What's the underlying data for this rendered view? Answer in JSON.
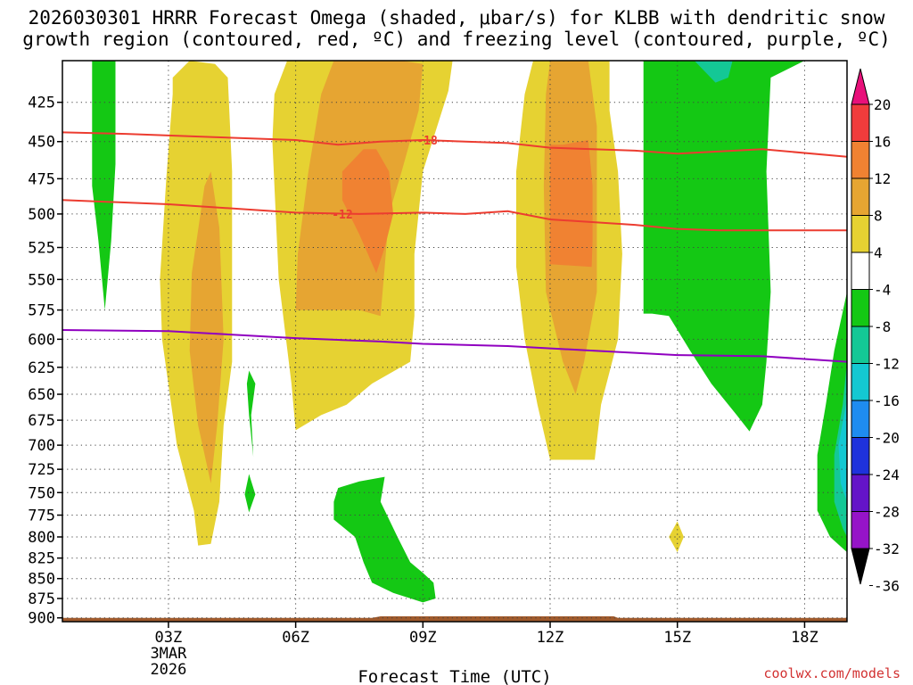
{
  "title_line1": "2026030301 HRRR Forecast Omega (shaded, μbar/s) for KLBB with dendritic snow",
  "title_line2": "growth region (contoured, red, ºC) and freezing level (contoured, purple, ºC)",
  "credit": "coolwx.com/models",
  "colors": {
    "red_contour": "#ec3c30",
    "purple_contour": "#9000c0",
    "ground": "#a05a2c"
  },
  "chart_data": {
    "type": "heatmap",
    "title": "2026030301 HRRR Forecast Omega (shaded, μbar/s) for KLBB with dendritic snow growth region (contoured, red, ºC) and freezing level (contoured, purple, ºC)",
    "xlabel": "Forecast Time (UTC)",
    "ylabel": "",
    "x_range_hours": [
      0.5,
      19
    ],
    "y_range_mb": [
      400,
      905
    ],
    "y_scale": "log-pressure",
    "grid": true,
    "x_ticks": [
      {
        "hour": 3,
        "label": "03Z",
        "sub1": "3MAR",
        "sub2": "2026"
      },
      {
        "hour": 6,
        "label": "06Z"
      },
      {
        "hour": 9,
        "label": "09Z"
      },
      {
        "hour": 12,
        "label": "12Z"
      },
      {
        "hour": 15,
        "label": "15Z"
      },
      {
        "hour": 18,
        "label": "18Z"
      }
    ],
    "y_ticks": [
      425,
      450,
      475,
      500,
      525,
      550,
      575,
      600,
      625,
      650,
      675,
      700,
      725,
      750,
      775,
      800,
      825,
      850,
      875,
      900
    ],
    "colorbar": {
      "ticks": [
        "20",
        "16",
        "12",
        "8",
        "4",
        "-4",
        "-8",
        "-12",
        "-16",
        "-20",
        "-24",
        "-28",
        "-32",
        "-36"
      ],
      "levels": [
        {
          "range": ">20",
          "color": "#e8107a"
        },
        {
          "range": "16 to 20",
          "color": "#f03c3c"
        },
        {
          "range": "12 to 16",
          "color": "#f08232"
        },
        {
          "range": "8 to 12",
          "color": "#e6a532"
        },
        {
          "range": "4 to 8",
          "color": "#e6d232"
        },
        {
          "range": "-4 to 4",
          "color": "#ffffff"
        },
        {
          "range": "-8 to -4",
          "color": "#14c814"
        },
        {
          "range": "-12 to -8",
          "color": "#14c896"
        },
        {
          "range": "-16 to -12",
          "color": "#14c8d2"
        },
        {
          "range": "-20 to -16",
          "color": "#1e8cf0"
        },
        {
          "range": "-24 to -20",
          "color": "#1e32dc"
        },
        {
          "range": "-28 to -24",
          "color": "#6414c8"
        },
        {
          "range": "-32 to -28",
          "color": "#9614c8"
        },
        {
          "range": "-36 to -32",
          "color": "#aaaaaa"
        },
        {
          "range": "<-36",
          "color": "#000000"
        }
      ]
    },
    "contour_lines": [
      {
        "name": "-18C isotherm",
        "label": "-18",
        "label_at": [
          9.1,
          449
        ],
        "color": "#ec3c30",
        "points": [
          [
            0.5,
            444
          ],
          [
            2,
            445
          ],
          [
            4,
            447
          ],
          [
            6,
            449
          ],
          [
            7,
            452
          ],
          [
            8,
            450
          ],
          [
            9,
            449
          ],
          [
            10,
            450
          ],
          [
            11,
            451
          ],
          [
            12,
            454
          ],
          [
            14,
            456
          ],
          [
            15,
            458
          ],
          [
            17,
            455
          ],
          [
            19,
            460
          ]
        ]
      },
      {
        "name": "-12C isotherm",
        "label": "-12",
        "label_at": [
          7.1,
          500
        ],
        "color": "#ec3c30",
        "points": [
          [
            0.5,
            490
          ],
          [
            3,
            493
          ],
          [
            5,
            497
          ],
          [
            6,
            499
          ],
          [
            7.5,
            500
          ],
          [
            9,
            499
          ],
          [
            10,
            500
          ],
          [
            11,
            498
          ],
          [
            12,
            504
          ],
          [
            14,
            508
          ],
          [
            15,
            511
          ],
          [
            16,
            512
          ],
          [
            19,
            512
          ]
        ]
      },
      {
        "name": "0C freezing level",
        "label": "",
        "color": "#9000c0",
        "points": [
          [
            0.5,
            592
          ],
          [
            3,
            593
          ],
          [
            4,
            595
          ],
          [
            6,
            599
          ],
          [
            8,
            602
          ],
          [
            9,
            604
          ],
          [
            11,
            606
          ],
          [
            13,
            610
          ],
          [
            15,
            614
          ],
          [
            17,
            615
          ],
          [
            19,
            620
          ]
        ]
      }
    ],
    "shaded_regions": [
      {
        "level": "4 to 8",
        "color": "#e6d232",
        "points": [
          [
            3.1,
            410
          ],
          [
            3.5,
            400
          ],
          [
            4.1,
            402
          ],
          [
            4.4,
            410
          ],
          [
            4.5,
            470
          ],
          [
            4.5,
            620
          ],
          [
            4.3,
            680
          ],
          [
            4.2,
            760
          ],
          [
            4.0,
            808
          ],
          [
            3.7,
            810
          ],
          [
            3.6,
            770
          ],
          [
            3.2,
            700
          ],
          [
            2.85,
            600
          ],
          [
            2.8,
            550
          ],
          [
            2.95,
            475
          ],
          [
            3.1,
            420
          ]
        ]
      },
      {
        "level": "8 to 12",
        "color": "#e6a532",
        "points": [
          [
            3.85,
            480
          ],
          [
            4.0,
            470
          ],
          [
            4.2,
            510
          ],
          [
            4.3,
            600
          ],
          [
            4.15,
            680
          ],
          [
            4.0,
            740
          ],
          [
            3.7,
            680
          ],
          [
            3.5,
            610
          ],
          [
            3.55,
            545
          ]
        ]
      },
      {
        "level": "4 to 8",
        "color": "#e6d232",
        "points": [
          [
            5.5,
            420
          ],
          [
            5.8,
            400
          ],
          [
            6.5,
            400
          ],
          [
            7.8,
            400
          ],
          [
            9.2,
            400
          ],
          [
            9.7,
            400
          ],
          [
            9.6,
            418
          ],
          [
            9.0,
            470
          ],
          [
            8.8,
            530
          ],
          [
            8.8,
            580
          ],
          [
            8.7,
            620
          ],
          [
            7.8,
            640
          ],
          [
            7.2,
            660
          ],
          [
            6.6,
            670
          ],
          [
            6.0,
            685
          ],
          [
            5.9,
            640
          ],
          [
            5.6,
            550
          ],
          [
            5.45,
            450
          ]
        ]
      },
      {
        "level": "8 to 12",
        "color": "#e6a532",
        "points": [
          [
            6.6,
            420
          ],
          [
            6.9,
            400
          ],
          [
            7.5,
            400
          ],
          [
            8.5,
            400
          ],
          [
            9.0,
            402
          ],
          [
            8.9,
            430
          ],
          [
            8.5,
            470
          ],
          [
            8.2,
            500
          ],
          [
            8.1,
            540
          ],
          [
            8.0,
            580
          ],
          [
            7.5,
            575
          ],
          [
            6.6,
            575
          ],
          [
            6.0,
            575
          ],
          [
            6.05,
            530
          ],
          [
            6.3,
            470
          ]
        ]
      },
      {
        "level": "12 to 16",
        "color": "#f08232",
        "points": [
          [
            7.1,
            470
          ],
          [
            7.6,
            455
          ],
          [
            7.9,
            455
          ],
          [
            8.2,
            470
          ],
          [
            8.3,
            500
          ],
          [
            8.1,
            525
          ],
          [
            7.9,
            545
          ],
          [
            7.5,
            515
          ],
          [
            7.1,
            490
          ]
        ]
      },
      {
        "level": "4 to 8",
        "color": "#e6d232",
        "points": [
          [
            11.4,
            420
          ],
          [
            11.6,
            400
          ],
          [
            13.4,
            400
          ],
          [
            13.4,
            430
          ],
          [
            13.6,
            470
          ],
          [
            13.7,
            530
          ],
          [
            13.6,
            600
          ],
          [
            13.2,
            660
          ],
          [
            13.05,
            715
          ],
          [
            12.0,
            715
          ],
          [
            11.7,
            660
          ],
          [
            11.4,
            600
          ],
          [
            11.2,
            540
          ],
          [
            11.2,
            470
          ]
        ]
      },
      {
        "level": "8 to 12",
        "color": "#e6a532",
        "points": [
          [
            11.9,
            420
          ],
          [
            12.0,
            400
          ],
          [
            12.9,
            400
          ],
          [
            13.1,
            440
          ],
          [
            13.1,
            500
          ],
          [
            13.1,
            560
          ],
          [
            12.8,
            620
          ],
          [
            12.6,
            650
          ],
          [
            12.3,
            620
          ],
          [
            11.9,
            560
          ],
          [
            11.85,
            480
          ]
        ]
      },
      {
        "level": "12 to 16",
        "color": "#f08232",
        "points": [
          [
            12.0,
            452
          ],
          [
            12.3,
            452
          ],
          [
            12.9,
            449
          ],
          [
            13.0,
            480
          ],
          [
            13.0,
            520
          ],
          [
            12.98,
            540
          ],
          [
            12.0,
            538
          ],
          [
            12.0,
            500
          ]
        ]
      },
      {
        "level": "4 to 8",
        "color": "#e6d232",
        "points": [
          [
            15.0,
            782
          ],
          [
            15.15,
            800
          ],
          [
            15.0,
            818
          ],
          [
            14.8,
            800
          ]
        ]
      },
      {
        "level": "-8 to -4",
        "color": "#14c814",
        "points": [
          [
            1.2,
            400
          ],
          [
            1.75,
            400
          ],
          [
            1.75,
            465
          ],
          [
            1.65,
            520
          ],
          [
            1.5,
            575
          ],
          [
            1.35,
            520
          ],
          [
            1.2,
            480
          ]
        ]
      },
      {
        "level": "-8 to -4",
        "color": "#14c814",
        "points": [
          [
            4.9,
            628
          ],
          [
            5.05,
            640
          ],
          [
            4.95,
            670
          ],
          [
            5.0,
            712
          ],
          [
            4.9,
            670
          ],
          [
            4.85,
            640
          ]
        ]
      },
      {
        "level": "-8 to -4",
        "color": "#14c814",
        "points": [
          [
            4.9,
            730
          ],
          [
            5.05,
            752
          ],
          [
            4.9,
            772
          ],
          [
            4.8,
            752
          ]
        ]
      },
      {
        "level": "-8 to -4",
        "color": "#14c814",
        "points": [
          [
            7.0,
            745
          ],
          [
            7.5,
            738
          ],
          [
            8.1,
            733
          ],
          [
            8.0,
            760
          ],
          [
            8.4,
            800
          ],
          [
            8.7,
            830
          ],
          [
            9.0,
            843
          ],
          [
            9.25,
            855
          ],
          [
            9.3,
            875
          ],
          [
            9.0,
            880
          ],
          [
            8.3,
            868
          ],
          [
            7.8,
            855
          ],
          [
            7.6,
            830
          ],
          [
            7.4,
            800
          ],
          [
            6.9,
            780
          ],
          [
            6.9,
            760
          ]
        ]
      },
      {
        "level": "-8 to -4",
        "color": "#14c814",
        "points": [
          [
            14.2,
            400
          ],
          [
            18.0,
            400
          ],
          [
            17.2,
            410
          ],
          [
            17.1,
            470
          ],
          [
            17.2,
            560
          ],
          [
            17.1,
            620
          ],
          [
            17.0,
            660
          ],
          [
            16.7,
            686
          ],
          [
            16.4,
            670
          ],
          [
            15.8,
            640
          ],
          [
            15.3,
            610
          ],
          [
            14.8,
            580
          ],
          [
            14.4,
            578
          ],
          [
            14.2,
            578
          ],
          [
            14.2,
            430
          ]
        ]
      },
      {
        "level": "-12 to -8",
        "color": "#14c896",
        "points": [
          [
            15.4,
            400
          ],
          [
            16.3,
            400
          ],
          [
            16.2,
            410
          ],
          [
            15.9,
            413
          ]
        ]
      },
      {
        "level": "-8 to -4",
        "color": "#14c814",
        "points": [
          [
            19.0,
            560
          ],
          [
            18.7,
            610
          ],
          [
            18.5,
            660
          ],
          [
            18.3,
            710
          ],
          [
            18.3,
            770
          ],
          [
            18.6,
            800
          ],
          [
            19.0,
            818
          ]
        ]
      },
      {
        "level": "-12 to -8",
        "color": "#14c896",
        "points": [
          [
            19.0,
            620
          ],
          [
            18.9,
            660
          ],
          [
            18.7,
            710
          ],
          [
            18.7,
            760
          ],
          [
            18.9,
            790
          ],
          [
            19.0,
            800
          ]
        ]
      },
      {
        "level": "-16 to -12",
        "color": "#14c8d2",
        "points": [
          [
            19.0,
            655
          ],
          [
            18.8,
            700
          ],
          [
            18.85,
            740
          ],
          [
            19.0,
            760
          ]
        ]
      }
    ],
    "terrain": [
      [
        0.5,
        900
      ],
      [
        7.8,
        900
      ],
      [
        8.0,
        898
      ],
      [
        13.5,
        898
      ],
      [
        13.6,
        900
      ],
      [
        19,
        900
      ]
    ]
  }
}
